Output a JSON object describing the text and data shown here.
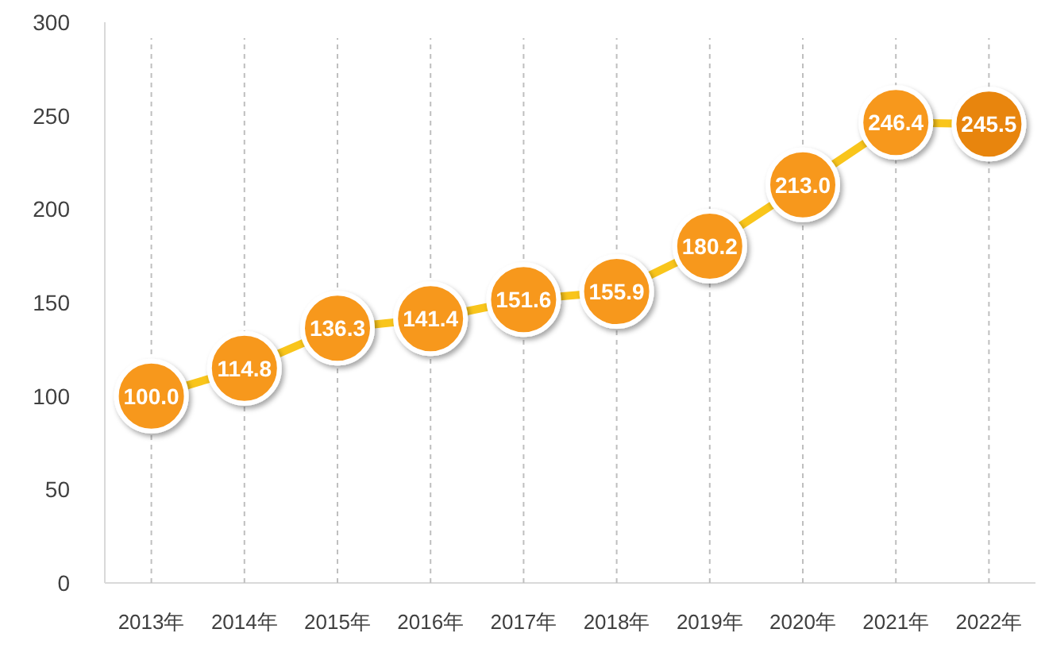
{
  "chart_data": {
    "type": "line",
    "categories": [
      "2013年",
      "2014年",
      "2015年",
      "2016年",
      "2017年",
      "2018年",
      "2019年",
      "2020年",
      "2021年",
      "2022年"
    ],
    "series": [
      {
        "color": "#f9c51b",
        "colors": [
          "#f7981d",
          "#f7981d",
          "#f7981d",
          "#f7981d",
          "#f7981d",
          "#f7981d",
          "#f7981d",
          "#f7981d",
          "#f7981d",
          "#e8850c"
        ],
        "values": [
          100.0,
          114.8,
          136.3,
          141.4,
          151.6,
          155.9,
          180.2,
          213.0,
          246.4,
          245.5
        ]
      }
    ],
    "value_labels": [
      "100.0",
      "114.8",
      "136.3",
      "141.4",
      "151.6",
      "155.9",
      "180.2",
      "213.0",
      "246.4",
      "245.5"
    ],
    "ylim": [
      0,
      300
    ],
    "yticks": [
      0,
      50,
      100,
      150,
      200,
      250,
      300
    ],
    "grid": "x",
    "marker": "circle",
    "line_style": "solid"
  }
}
